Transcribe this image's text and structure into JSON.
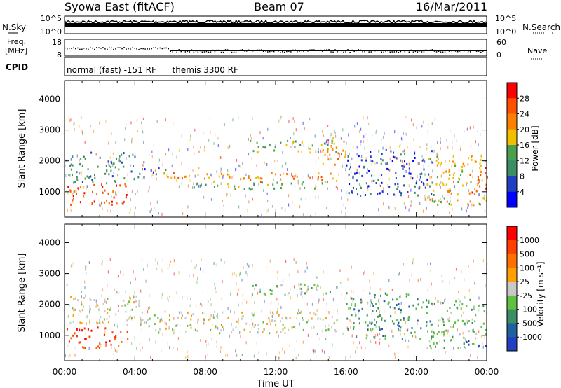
{
  "header": {
    "title_left": "Syowa East (fitACF)",
    "title_center": "Beam 07",
    "title_right": "16/Mar/2011"
  },
  "noise_panel": {
    "left_label": "N.Sky",
    "right_label": "N.Search",
    "left_ticks": [
      "10^5",
      "10^0"
    ],
    "right_ticks": [
      "10^5",
      "10^0"
    ]
  },
  "freq_panel": {
    "left_label_1": "Freq.",
    "left_label_2": "[MHz]",
    "right_label": "Nave",
    "left_ticks": [
      "18",
      "8"
    ],
    "right_ticks": [
      "60",
      "0"
    ]
  },
  "cpid_panel": {
    "label": "CPID",
    "segments": [
      {
        "start_hour": 0,
        "end_hour": 6,
        "text": "normal (fast) -151 RF"
      },
      {
        "start_hour": 6,
        "end_hour": 24,
        "text": "themis 3300 RF"
      }
    ]
  },
  "colors": {
    "power_scale": [
      "#0000ff",
      "#2040c0",
      "#3c8c64",
      "#48a050",
      "#f0c000",
      "#ff8000",
      "#ff5000",
      "#ff0000"
    ],
    "velocity_scale": [
      "#2040c0",
      "#2060a0",
      "#3c8c64",
      "#60c040",
      "#c8c8c8",
      "#ffa000",
      "#ff7000",
      "#ff4000",
      "#ff0000"
    ]
  },
  "chart_data": [
    {
      "type": "heatmap",
      "title": "Power",
      "ylabel": "Slant Range [km]",
      "xlabel": "Time UT",
      "x_range": [
        0,
        24
      ],
      "ylim": [
        180,
        4600
      ],
      "y_ticks": [
        "1000",
        "2000",
        "3000",
        "4000"
      ],
      "x_ticks": [
        "00:00",
        "04:00",
        "08:00",
        "12:00",
        "16:00",
        "20:00",
        "00:00"
      ],
      "colorbar_label": "Power [dB]",
      "colorbar_ticks": [
        "4",
        "8",
        "12",
        "16",
        "20",
        "24",
        "28"
      ],
      "regions": [
        {
          "t0": 0.0,
          "t1": 3.6,
          "r0": 600,
          "r1": 1300,
          "level": 6
        },
        {
          "t0": 0.2,
          "t1": 4.5,
          "r0": 1300,
          "r1": 2300,
          "level": 2
        },
        {
          "t0": 4.2,
          "t1": 6.0,
          "r0": 1550,
          "r1": 1800,
          "level": 1
        },
        {
          "t0": 5.2,
          "t1": 15.5,
          "r0": 1350,
          "r1": 1650,
          "level": 5
        },
        {
          "t0": 7.0,
          "t1": 15.5,
          "r0": 1100,
          "r1": 1350,
          "level": 3
        },
        {
          "t0": 10.5,
          "t1": 15.5,
          "r0": 2300,
          "r1": 2700,
          "level": 3
        },
        {
          "t0": 14.5,
          "t1": 16.0,
          "r0": 1900,
          "r1": 2800,
          "level": 5
        },
        {
          "t0": 16.0,
          "t1": 21.0,
          "r0": 900,
          "r1": 2400,
          "level": 1
        },
        {
          "t0": 20.5,
          "t1": 24.0,
          "r0": 600,
          "r1": 2200,
          "level": 4
        },
        {
          "t0": 23.0,
          "t1": 24.0,
          "r0": 1000,
          "r1": 1800,
          "level": 6
        }
      ]
    },
    {
      "type": "heatmap",
      "title": "Velocity",
      "ylabel": "Slant Range [km]",
      "xlabel": "Time UT",
      "x_range": [
        0,
        24
      ],
      "ylim": [
        180,
        4600
      ],
      "y_ticks": [
        "1000",
        "2000",
        "3000",
        "4000"
      ],
      "x_ticks": [
        "00:00",
        "04:00",
        "08:00",
        "12:00",
        "16:00",
        "20:00",
        "00:00"
      ],
      "colorbar_label": "Velocity [m s⁻¹]",
      "colorbar_ticks": [
        "1000",
        "500",
        "100",
        "25",
        "-25",
        "-100",
        "-500",
        "-1000"
      ],
      "regions": [
        {
          "t0": 0.0,
          "t1": 3.6,
          "r0": 600,
          "r1": 1300,
          "level": 7
        },
        {
          "t0": 0.2,
          "t1": 4.5,
          "r0": 1300,
          "r1": 2300,
          "level": 4
        },
        {
          "t0": 4.2,
          "t1": 15.5,
          "r0": 1100,
          "r1": 1800,
          "level": 4
        },
        {
          "t0": 10.5,
          "t1": 15.5,
          "r0": 2300,
          "r1": 2700,
          "level": 3
        },
        {
          "t0": 16.0,
          "t1": 21.0,
          "r0": 900,
          "r1": 2400,
          "level": 2
        },
        {
          "t0": 20.5,
          "t1": 24.0,
          "r0": 600,
          "r1": 2200,
          "level": 3
        },
        {
          "t0": 22.5,
          "t1": 24.0,
          "r0": 600,
          "r1": 900,
          "level": 0
        }
      ]
    }
  ]
}
